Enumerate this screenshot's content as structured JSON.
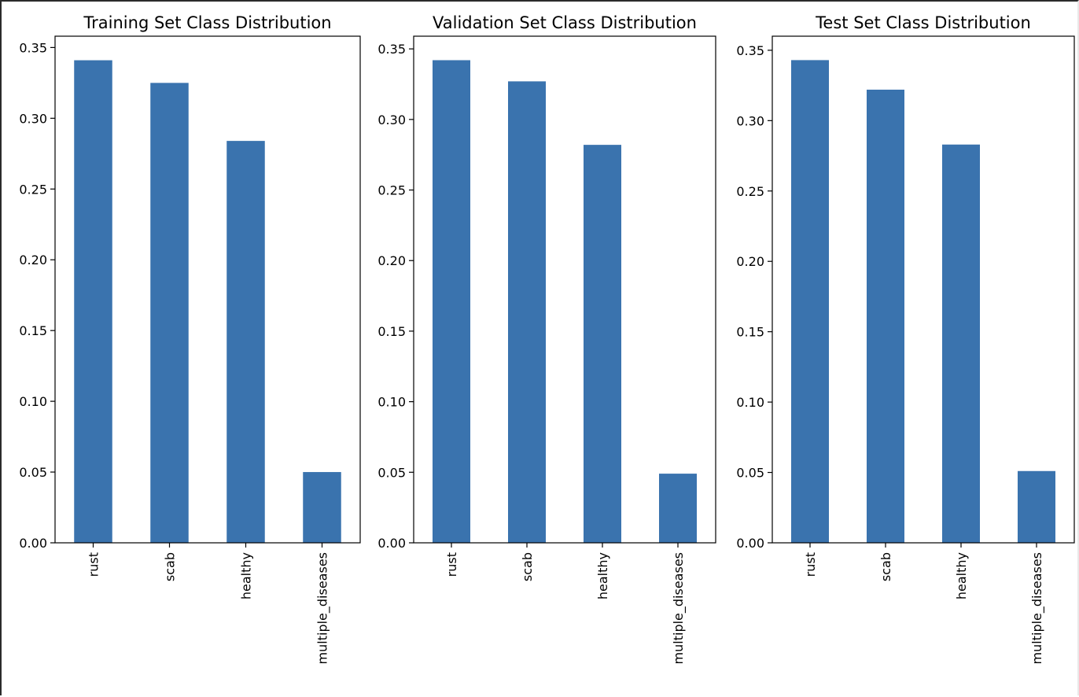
{
  "chart_data": [
    {
      "type": "bar",
      "title": "Training Set Class Distribution",
      "categories": [
        "rust",
        "scab",
        "healthy",
        "multiple_diseases"
      ],
      "values": [
        0.341,
        0.325,
        0.284,
        0.05
      ],
      "xlabel": "",
      "ylabel": "",
      "ylim": [
        0,
        0.358
      ],
      "yticks": [
        "0.00",
        "0.05",
        "0.10",
        "0.15",
        "0.20",
        "0.25",
        "0.30",
        "0.35"
      ],
      "color": "#3a73ae",
      "grid": false
    },
    {
      "type": "bar",
      "title": "Validation Set Class Distribution",
      "categories": [
        "rust",
        "scab",
        "healthy",
        "multiple_diseases"
      ],
      "values": [
        0.342,
        0.327,
        0.282,
        0.049
      ],
      "xlabel": "",
      "ylabel": "",
      "ylim": [
        0,
        0.359
      ],
      "yticks": [
        "0.00",
        "0.05",
        "0.10",
        "0.15",
        "0.20",
        "0.25",
        "0.30",
        "0.35"
      ],
      "color": "#3a73ae",
      "grid": false
    },
    {
      "type": "bar",
      "title": "Test Set Class Distribution",
      "categories": [
        "rust",
        "scab",
        "healthy",
        "multiple_diseases"
      ],
      "values": [
        0.343,
        0.322,
        0.283,
        0.051
      ],
      "xlabel": "",
      "ylabel": "",
      "ylim": [
        0,
        0.36
      ],
      "yticks": [
        "0.00",
        "0.05",
        "0.10",
        "0.15",
        "0.20",
        "0.25",
        "0.30",
        "0.35"
      ],
      "color": "#3a73ae",
      "grid": false
    }
  ]
}
